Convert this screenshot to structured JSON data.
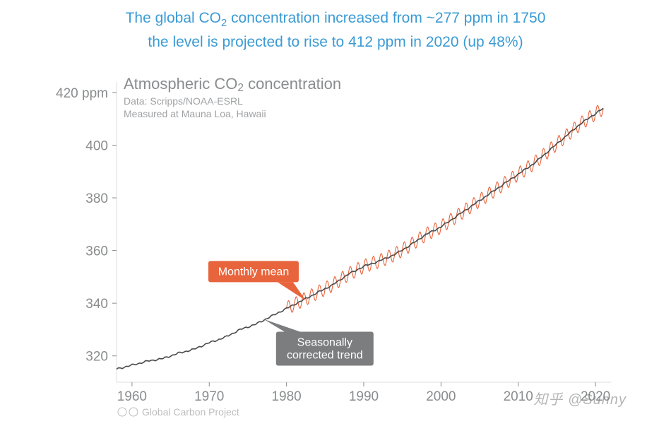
{
  "header": {
    "line1_a": "The global CO",
    "line1_sub": "2",
    "line1_b": " concentration increased from ~277 ppm in 1750",
    "line2": "the level is projected to rise to 412 ppm in 2020 (up 48%)",
    "color": "#3b9bd4",
    "fontsize": 21
  },
  "chart": {
    "type": "line",
    "title_a": "Atmospheric CO",
    "title_sub": "2",
    "title_b": " concentration",
    "data_source_line1": "Data: Scripps/NOAA-ESRL",
    "data_source_line2": "Measured at Mauna Loa, Hawaii",
    "footer": "Global Carbon Project",
    "title_fontsize": 22,
    "title_color": "#8a8c8e",
    "sub_fontsize": 14,
    "background_color": "#ffffff",
    "plot_border_color": "#dcdcdc",
    "grid_color": "#e8e8e8",
    "xlim": [
      1958,
      2022
    ],
    "ylim": [
      310,
      424
    ],
    "xticks": [
      1960,
      1970,
      1980,
      1990,
      2000,
      2010,
      2020
    ],
    "yticks": [
      320,
      340,
      360,
      380,
      400,
      420
    ],
    "y_unit_label": "420 ppm",
    "tick_fontsize": 19,
    "tick_color": "#8a8c8e",
    "trend": {
      "label": "Seasonally corrected trend",
      "color": "#4a4a4a",
      "line_width": 1.6,
      "callout_bg": "#7b7d7f",
      "points": [
        [
          1958,
          315
        ],
        [
          1960,
          316.5
        ],
        [
          1962,
          318
        ],
        [
          1964,
          319
        ],
        [
          1966,
          321
        ],
        [
          1968,
          322.5
        ],
        [
          1970,
          325
        ],
        [
          1972,
          327
        ],
        [
          1974,
          330
        ],
        [
          1976,
          332
        ],
        [
          1978,
          335
        ],
        [
          1980,
          338
        ],
        [
          1982,
          341
        ],
        [
          1984,
          344
        ],
        [
          1986,
          347
        ],
        [
          1988,
          351
        ],
        [
          1990,
          354
        ],
        [
          1992,
          356
        ],
        [
          1994,
          358.5
        ],
        [
          1996,
          362
        ],
        [
          1998,
          366
        ],
        [
          2000,
          369
        ],
        [
          2002,
          373
        ],
        [
          2004,
          377
        ],
        [
          2006,
          381
        ],
        [
          2008,
          385
        ],
        [
          2010,
          389
        ],
        [
          2012,
          393
        ],
        [
          2014,
          398
        ],
        [
          2016,
          403
        ],
        [
          2018,
          408
        ],
        [
          2020,
          412
        ],
        [
          2021,
          414
        ]
      ]
    },
    "monthly": {
      "label": "Monthly mean",
      "color": "#e8643c",
      "line_width": 1.1,
      "callout_bg": "#e8643c",
      "start_year": 1980,
      "amplitude": 2.6,
      "cycles_per_year": 1
    }
  },
  "watermark": "知乎 @Sunny"
}
